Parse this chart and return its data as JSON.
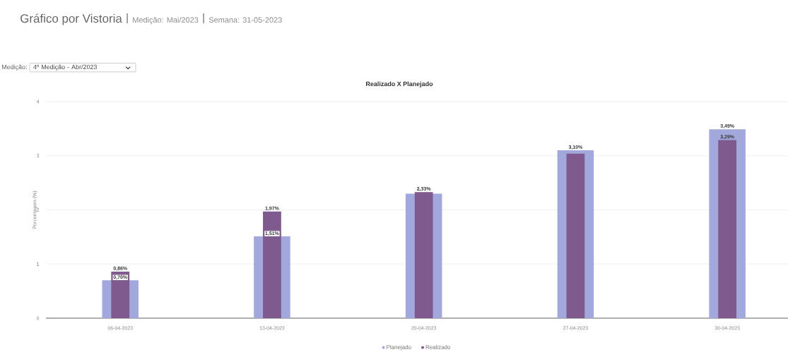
{
  "chart_data": {
    "type": "bar",
    "title": "Realizado X Planejado",
    "ylabel": "Porcentagem (%)",
    "annotations": [
      "Gráfico por Vistoria",
      "Medição: Mai/2023",
      "Semana: 31-05-2023",
      "Medição:",
      "4º Medição - Abr/2023"
    ],
    "categories": [
      "06-04-2023",
      "13-04-2023",
      "20-04-2023",
      "27-04-2023",
      "30-04-2023"
    ],
    "series": [
      {
        "name": "Planejado",
        "color": "#a3a8dc",
        "values": [
          0.7,
          1.51,
          2.3,
          3.1,
          3.49
        ],
        "value_labels": [
          "0,70%",
          "1,51%",
          null,
          "3,10%",
          "3,49%"
        ]
      },
      {
        "name": "Realizado",
        "color": "#7f5a8f",
        "values": [
          0.86,
          1.97,
          2.33,
          3.04,
          3.29
        ],
        "value_labels": [
          "0,86%",
          "1,97%",
          "2,33%",
          null,
          "3,29%"
        ]
      }
    ],
    "ylim": [
      0,
      4
    ],
    "yticks": [
      0,
      1,
      2,
      3,
      4
    ],
    "grid": "y",
    "legend": "bottom"
  }
}
